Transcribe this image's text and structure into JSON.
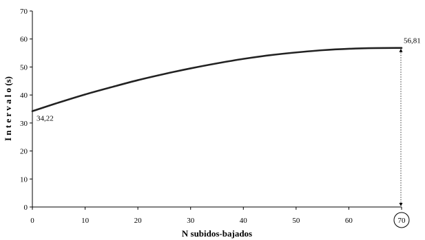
{
  "chart_data": {
    "type": "line",
    "title": "",
    "xlabel": "N subidos-bajados",
    "ylabel": "I n t e r v a l o (s)",
    "xlim": [
      0,
      70
    ],
    "ylim": [
      0,
      70
    ],
    "x_ticks": [
      0,
      10,
      20,
      30,
      40,
      50,
      60,
      70
    ],
    "y_ticks": [
      0,
      10,
      20,
      30,
      40,
      50,
      60,
      70
    ],
    "x_tick_labels": [
      "0",
      "10",
      "20",
      "30",
      "40",
      "50",
      "60",
      "70"
    ],
    "y_tick_labels": [
      "0",
      "10",
      "20",
      "30",
      "40",
      "50",
      "60",
      "70"
    ],
    "grid": false,
    "legend": "none",
    "series": [
      {
        "x": [
          0,
          5,
          10,
          15,
          20,
          25,
          30,
          35,
          40,
          45,
          50,
          55,
          60,
          65,
          70
        ],
        "y": [
          34.22,
          37.3,
          40.2,
          42.8,
          45.3,
          47.5,
          49.5,
          51.3,
          52.9,
          54.2,
          55.2,
          56.0,
          56.5,
          56.75,
          56.81
        ],
        "color": "#222222"
      }
    ],
    "annotations": {
      "start_label": "34,22",
      "end_label": "56,81",
      "circled_tick": "70"
    }
  }
}
